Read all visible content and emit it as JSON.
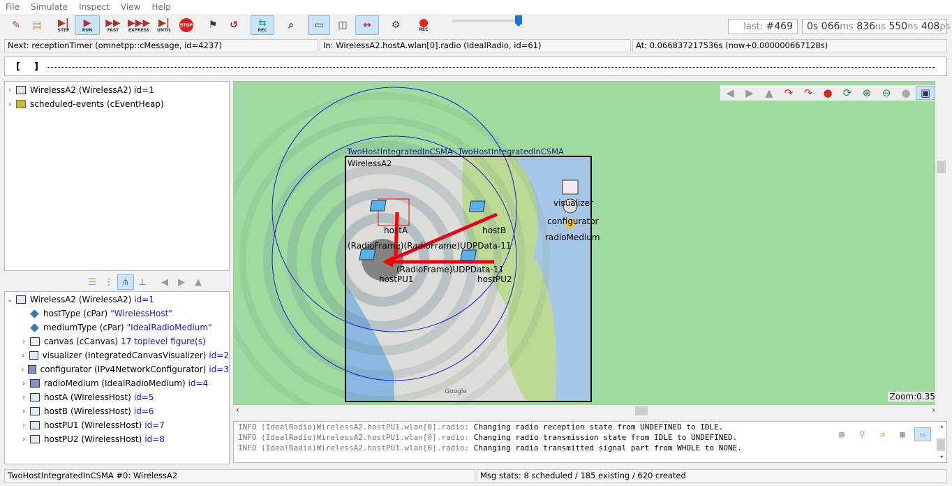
{
  "menu": [
    "File",
    "Simulate",
    "Inspect",
    "View",
    "Help"
  ],
  "toolbar": {
    "step": "STEP",
    "run": "RUN",
    "fast": "FAST",
    "express": "EXPRESS",
    "until": "UNTIL",
    "stop": "STOP",
    "rec": "REC",
    "rec2": "REC"
  },
  "event_counter": {
    "label": "last:",
    "value": "#469"
  },
  "sim_time": {
    "s": "0s",
    "ms_val": "066",
    "ms": "ms",
    "us_val": "836",
    "us": "us",
    "ns_val": "550",
    "ns": "ns",
    "ps_val": "408",
    "ps": "ps"
  },
  "info": {
    "next": "Next: receptionTimer (omnetpp::cMessage, id=4237)",
    "in": "In: WirelessA2.hostA.wlan[0].radio (IdealRadio, id=61)",
    "at": "At: 0.066837217536s (now+0.000000667128s)"
  },
  "timeline": {
    "left": "[",
    "right": "]"
  },
  "object_tree": [
    {
      "label": "WirelessA2 (WirelessA2) id=1",
      "icon": "module-icon"
    },
    {
      "label": "scheduled-events (cEventHeap)",
      "icon": "heap-icon"
    }
  ],
  "inspector": {
    "root": {
      "label": "WirelessA2 (WirelessA2)",
      "id": "id=1"
    },
    "children": [
      {
        "label": "hostType (cPar)",
        "value": "\"WirelessHost\"",
        "icon": "param-icon",
        "expand": false
      },
      {
        "label": "mediumType (cPar)",
        "value": "\"IdealRadioMedium\"",
        "icon": "param-icon",
        "expand": false
      },
      {
        "label": "canvas (cCanvas)",
        "value": "17 toplevel figure(s)",
        "icon": "figure-icon",
        "expand": true
      },
      {
        "label": "visualizer (IntegratedCanvasVisualizer)",
        "value": "id=2",
        "icon": "module-icon",
        "expand": true
      },
      {
        "label": "configurator (IPv4NetworkConfigurator)",
        "value": "id=3",
        "icon": "simple-module-icon",
        "expand": true
      },
      {
        "label": "radioMedium (IdealRadioMedium)",
        "value": "id=4",
        "icon": "simple-module-icon",
        "expand": true
      },
      {
        "label": "hostA (WirelessHost)",
        "value": "id=5",
        "icon": "module-icon",
        "expand": true
      },
      {
        "label": "hostB (WirelessHost)",
        "value": "id=6",
        "icon": "module-icon",
        "expand": true
      },
      {
        "label": "hostPU1 (WirelessHost)",
        "value": "id=7",
        "icon": "module-icon",
        "expand": true
      },
      {
        "label": "hostPU2 (WirelessHost)",
        "value": "id=8",
        "icon": "module-icon",
        "expand": true
      }
    ]
  },
  "network": {
    "title": "TwoHostIntegratedInCSMA: TwoHostIntegratedInCSMA",
    "module_label": "WirelessA2",
    "nodes": {
      "hostA": "hostA",
      "hostB": "hostB",
      "hostPU1": "hostPU1",
      "hostPU2": "hostPU2",
      "visualizer": "visualizer",
      "configurator": "configurator",
      "radioMedium": "radioMedium"
    },
    "packets": [
      "(RadioFrame)(RadioFrame)UDPData-11",
      "(RadioFrame)UDPData-11"
    ],
    "map_attribution": "Google",
    "zoom": "Zoom:0.35x"
  },
  "log": [
    {
      "prefix": "INFO (IdealRadio)WirelessA2.hostPU1.wlan[0].radio:",
      "msg": "Changing radio reception state from UNDEFINED to IDLE."
    },
    {
      "prefix": "INFO (IdealRadio)WirelessA2.hostPU1.wlan[0].radio:",
      "msg": "Changing radio transmission state from IDLE to UNDEFINED."
    },
    {
      "prefix": "INFO (IdealRadio)WirelessA2.hostPU1.wlan[0].radio:",
      "msg": "Changing radio transmitted signal part from WHOLE to NONE."
    }
  ],
  "status": {
    "left": "TwoHostIntegratedInCSMA #0: WirelessA2",
    "right": "Msg stats: 8 scheduled / 185 existing / 620 created"
  }
}
